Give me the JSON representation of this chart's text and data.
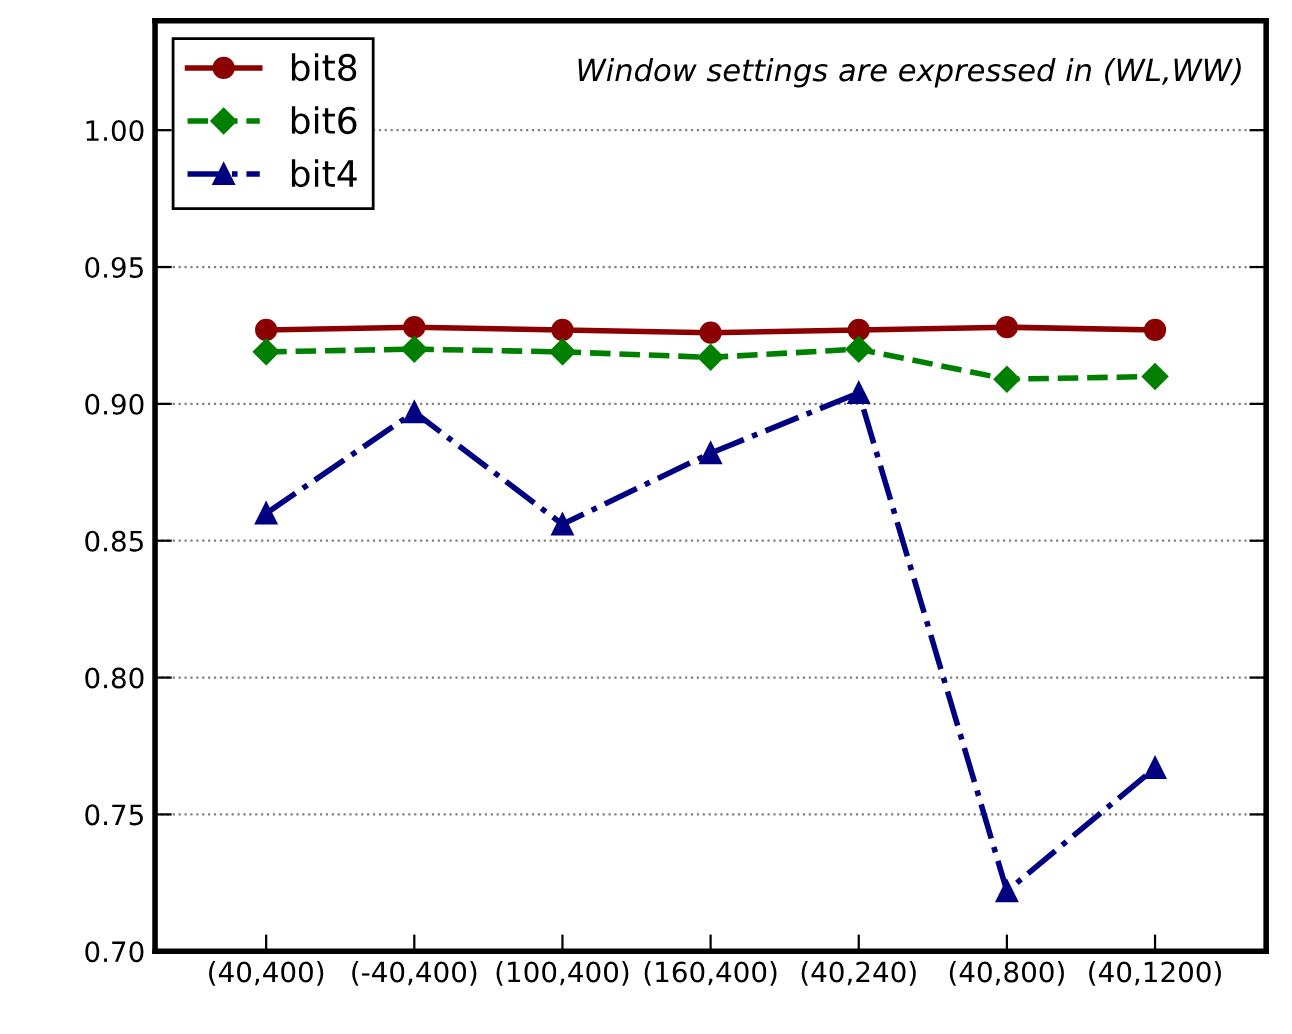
{
  "chart_data": {
    "type": "line",
    "categories": [
      "(40,400)",
      "(-40,400)",
      "(100,400)",
      "(160,400)",
      "(40,240)",
      "(40,800)",
      "(40,1200)"
    ],
    "series": [
      {
        "name": "bit8",
        "color": "#8b0000",
        "marker": "circle",
        "line_style": "solid",
        "values": [
          0.927,
          0.928,
          0.927,
          0.926,
          0.927,
          0.928,
          0.927
        ]
      },
      {
        "name": "bit6",
        "color": "#008000",
        "marker": "diamond",
        "line_style": "dashed",
        "values": [
          0.919,
          0.92,
          0.919,
          0.917,
          0.92,
          0.909,
          0.91
        ]
      },
      {
        "name": "bit4",
        "color": "#000080",
        "marker": "triangle",
        "line_style": "dashdot",
        "values": [
          0.86,
          0.897,
          0.856,
          0.882,
          0.904,
          0.722,
          0.767
        ]
      }
    ],
    "ylim": [
      0.7,
      1.04
    ],
    "yticks": [
      {
        "value": 0.7,
        "label": "0.70"
      },
      {
        "value": 0.75,
        "label": "0.75"
      },
      {
        "value": 0.8,
        "label": "0.80"
      },
      {
        "value": 0.85,
        "label": "0.85"
      },
      {
        "value": 0.9,
        "label": "0.90"
      },
      {
        "value": 0.95,
        "label": "0.95"
      },
      {
        "value": 1.0,
        "label": "1.00"
      }
    ],
    "grid": "y",
    "legend": "top left",
    "annotations": [
      "Window settings are expressed in (WL,WW)"
    ]
  }
}
